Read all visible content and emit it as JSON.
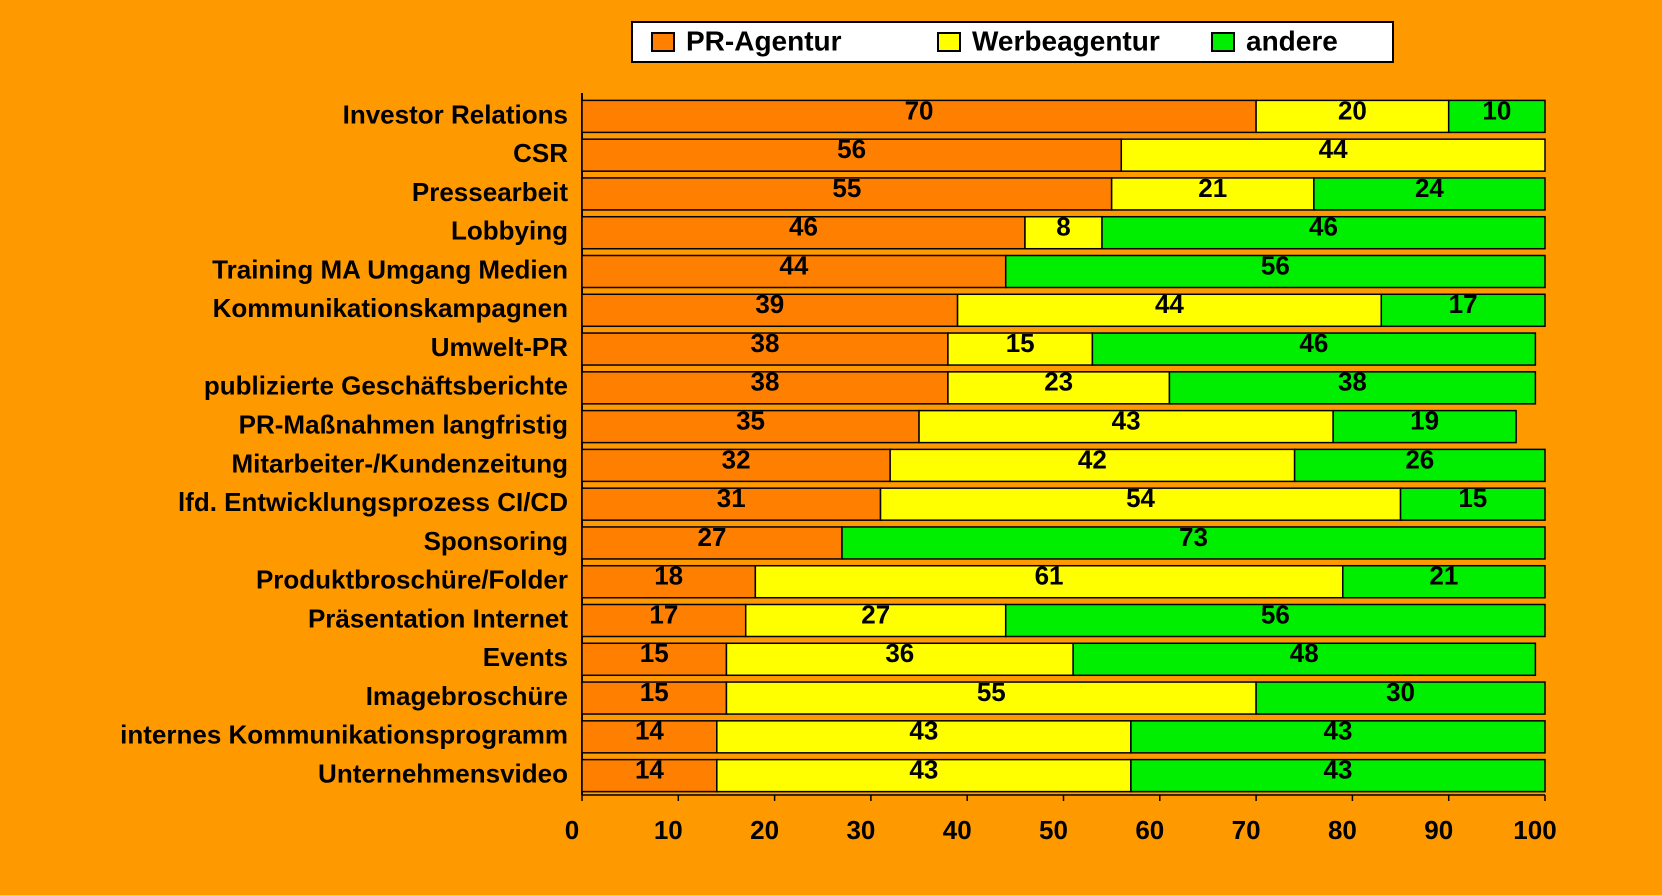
{
  "chart_data": {
    "type": "stacked_barh",
    "categories": [
      "Investor Relations",
      "CSR",
      "Pressearbeit",
      "Lobbying",
      "Training MA Umgang Medien",
      "Kommunikationskampagnen",
      "Umwelt-PR",
      "publizierte Geschäftsberichte",
      "PR-Maßnahmen langfristig",
      "Mitarbeiter-/Kundenzeitung",
      "lfd. Entwicklungsprozess CI/CD",
      "Sponsoring",
      "Produktbroschüre/Folder",
      "Präsentation Internet",
      "Events",
      "Imagebroschüre",
      "internes Kommunikationsprogramm",
      "Unternehmensvideo"
    ],
    "series": [
      {
        "name": "PR-Agentur",
        "color": "#ff8000",
        "values": [
          70,
          56,
          55,
          46,
          44,
          39,
          38,
          38,
          35,
          32,
          31,
          27,
          18,
          17,
          15,
          15,
          14,
          14
        ]
      },
      {
        "name": "Werbeagentur",
        "color": "#ffff00",
        "values": [
          20,
          44,
          21,
          8,
          null,
          44,
          15,
          23,
          43,
          42,
          54,
          null,
          61,
          27,
          36,
          55,
          43,
          43
        ]
      },
      {
        "name": "andere",
        "color": "#00ee00",
        "values": [
          10,
          null,
          24,
          46,
          56,
          17,
          46,
          38,
          19,
          26,
          15,
          73,
          21,
          56,
          48,
          30,
          43,
          43
        ]
      }
    ],
    "xlim": [
      0,
      100
    ],
    "xticks": [
      0,
      10,
      20,
      30,
      40,
      50,
      60,
      70,
      80,
      90,
      100
    ],
    "legend": "top"
  }
}
